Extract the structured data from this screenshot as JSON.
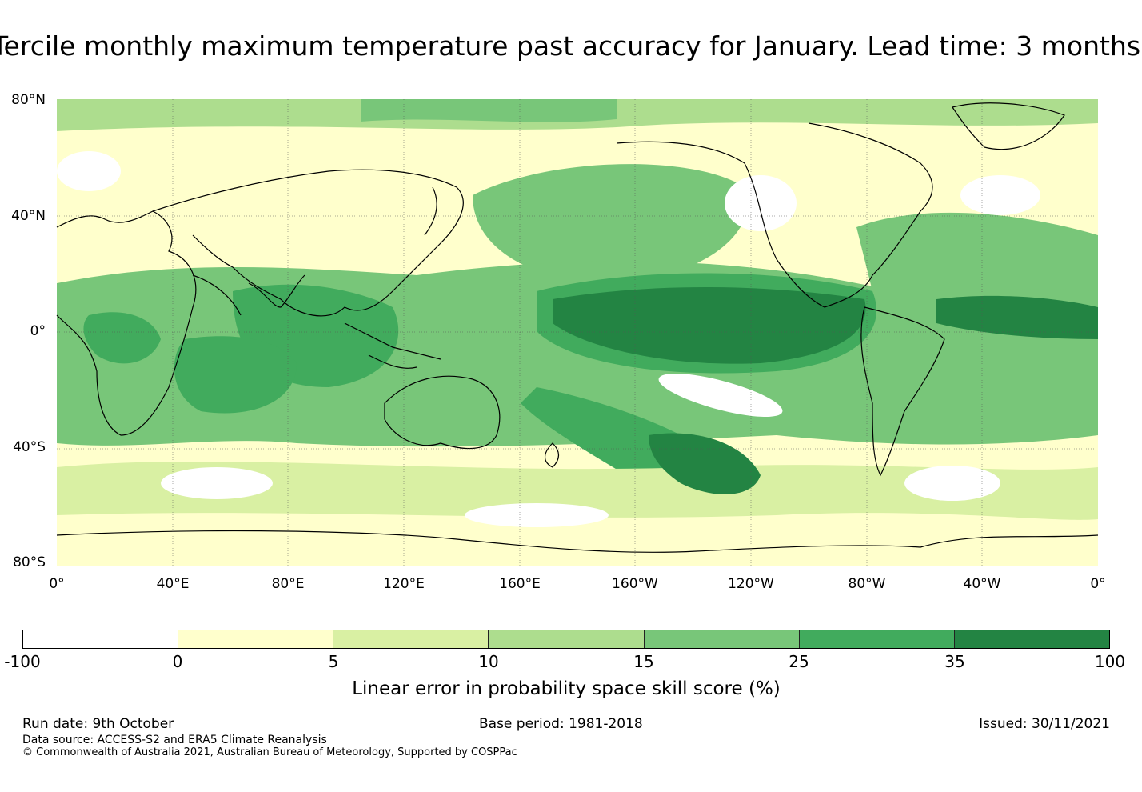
{
  "title": "Tercile monthly maximum temperature past accuracy for January. Lead time: 3 months",
  "map": {
    "projection": "equirectangular",
    "lat_range": [
      -80,
      80
    ],
    "lon_range": [
      0,
      360
    ],
    "lat_labels": [
      "80°N",
      "40°N",
      "0°",
      "40°S",
      "80°S"
    ],
    "lon_labels": [
      "0°",
      "40°E",
      "80°E",
      "120°E",
      "160°E",
      "160°W",
      "120°W",
      "80°W",
      "40°W",
      "0°"
    ],
    "grid": true
  },
  "colorbar": {
    "ticks": [
      "-100",
      "0",
      "5",
      "10",
      "15",
      "25",
      "35",
      "100"
    ],
    "colors": [
      "#ffffff",
      "#ffffcc",
      "#d9f0a3",
      "#addd8e",
      "#78c679",
      "#41ab5d",
      "#238443"
    ],
    "label": "Linear error in probability space skill score (%)"
  },
  "footer": {
    "run_date": "Run date: 9th October",
    "base_period": "Base period: 1981-2018",
    "issued": "Issued: 30/11/2021",
    "data_source": "Data source: ACCESS-S2 and ERA5 Climate Reanalysis",
    "copyright": "© Commonwealth of Australia 2021, Australian Bureau of Meteorology, Supported by COSPPac"
  }
}
